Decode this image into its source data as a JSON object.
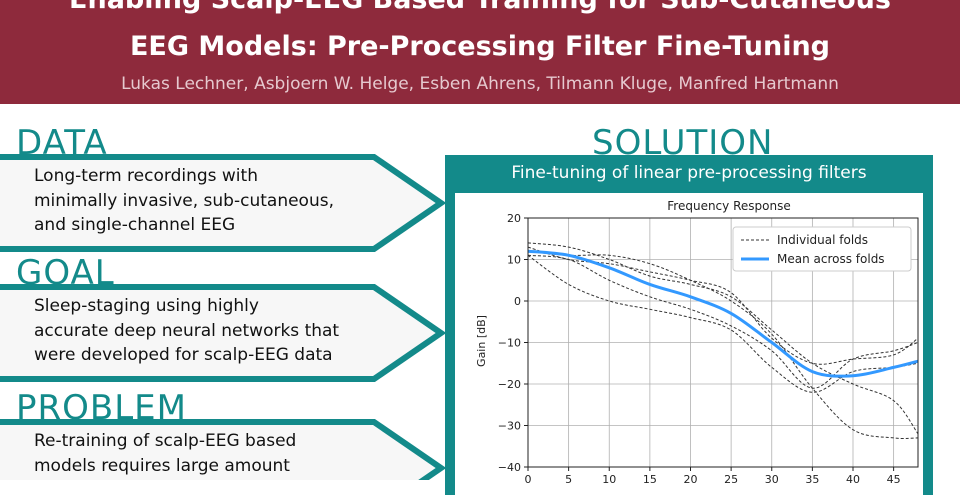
{
  "header": {
    "title_line1": "Enabling Scalp-EEG Based Training for Sub-Cutaneous",
    "title_line2": "EEG Models: Pre-Processing Filter Fine-Tuning",
    "authors": "Lukas Lechner, Asbjoern W. Helge, Esben Ahrens, Tilmann Kluge, Manfred Hartmann"
  },
  "colors": {
    "header_bg": "#8e2a3c",
    "accent": "#138a8a",
    "mean_line": "#3399ff"
  },
  "sections": [
    {
      "title": "DATA",
      "lines": [
        "Long-term recordings with",
        "minimally invasive, sub-cutaneous,",
        "and single-channel EEG"
      ]
    },
    {
      "title": "GOAL",
      "lines": [
        "Sleep-staging using highly",
        "accurate deep neural networks that",
        "were developed for scalp-EEG data"
      ]
    },
    {
      "title": "PROBLEM",
      "lines": [
        "Re-training of scalp-EEG based",
        "models requires large amount"
      ]
    }
  ],
  "solution": {
    "title": "SOLUTION",
    "panel_title": "Fine-tuning of linear pre-processing filters"
  },
  "chart_data": {
    "type": "line",
    "title": "Frequency Response",
    "ylabel": "Gain [dB]",
    "xlabel": "",
    "xlim": [
      0,
      48
    ],
    "ylim": [
      -40,
      20
    ],
    "xticks": [
      "0",
      "5",
      "10",
      "15",
      "20",
      "25",
      "30",
      "35",
      "40",
      "45"
    ],
    "yticks": [
      "20",
      "10",
      "0",
      "−10",
      "−20",
      "−30",
      "−40"
    ],
    "grid": true,
    "legend_position": "top-right",
    "legend": [
      "Individual folds",
      "Mean across folds"
    ],
    "x": [
      0,
      5,
      10,
      15,
      20,
      25,
      30,
      35,
      40,
      45,
      48
    ],
    "series": [
      {
        "name": "Individual folds",
        "values": [
          14,
          13,
          10,
          6,
          4,
          1,
          -7,
          -15,
          -20,
          -24,
          -32
        ]
      },
      {
        "name": "Individual folds",
        "values": [
          12,
          11,
          11,
          9,
          5,
          0,
          -8,
          -21,
          -31,
          -33,
          -33
        ]
      },
      {
        "name": "Individual folds",
        "values": [
          11,
          10,
          5,
          1,
          -2,
          -6,
          -12,
          -21,
          -14,
          -12,
          -10
        ]
      },
      {
        "name": "Individual folds",
        "values": [
          13,
          10,
          9,
          7,
          5,
          2,
          -9,
          -15,
          -14,
          -13,
          -9
        ]
      },
      {
        "name": "Individual folds",
        "values": [
          11,
          4,
          0,
          -2,
          -4,
          -7,
          -16,
          -22,
          -17,
          -16,
          -15
        ]
      },
      {
        "name": "Mean across folds",
        "values": [
          12,
          11,
          8,
          4,
          1,
          -3,
          -10,
          -17,
          -18,
          -16,
          -14.5
        ]
      }
    ]
  }
}
